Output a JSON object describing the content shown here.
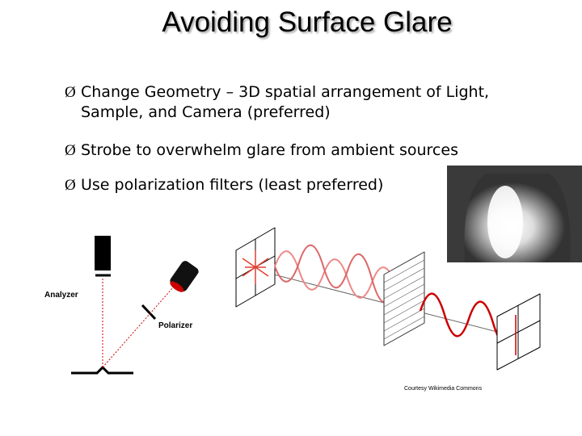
{
  "title": "Avoiding Surface Glare",
  "bullets": [
    {
      "marker": "Ø",
      "text": "Change Geometry – 3D spatial arrangement of   Light, Sample, and Camera (preferred)"
    },
    {
      "marker": "Ø",
      "text": "Strobe to overwhelm glare from ambient sources"
    },
    {
      "marker": "Ø",
      "text": "Use polarization filters (least preferred)"
    }
  ],
  "diagram": {
    "analyzer_label": "Analyzer",
    "polarizer_label": "Polarizer"
  },
  "caption": "Courtesy Wikimedia Commons"
}
